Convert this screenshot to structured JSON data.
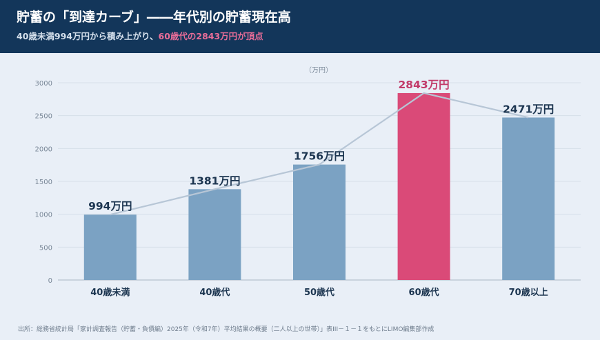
{
  "header": {
    "title": "貯蓄の「到達カーブ」――年代別の貯蓄現在高",
    "subtitle_prefix": "40歳未満994万円から積み上がり、",
    "subtitle_highlight": "60歳代の2843万円が頂点"
  },
  "chart_data": {
    "type": "bar",
    "title": "貯蓄の「到達カーブ」――年代別の貯蓄現在高",
    "unit_label": "（万円）",
    "categories": [
      "40歳未満",
      "40歳代",
      "50歳代",
      "60歳代",
      "70歳以上"
    ],
    "values": [
      994,
      1381,
      1756,
      2843,
      2471
    ],
    "data_labels": [
      "994万円",
      "1381万円",
      "1756万円",
      "2843万円",
      "2471万円"
    ],
    "highlight_index": 3,
    "ylim": [
      0,
      3000
    ],
    "yticks": [
      0,
      500,
      1000,
      1500,
      2000,
      2500,
      3000
    ],
    "grid": true,
    "overlay_line": true,
    "colors": {
      "bar": "#7ba2c3",
      "highlight": "#da4a78",
      "label": "#1c3550",
      "highlight_label": "#c23a69",
      "line": "#b7c6d6",
      "grid": "#d6dfe9",
      "tick": "#7a8898"
    }
  },
  "footer": {
    "source": "出所：総務省統計局「家計調査報告（貯蓄・負債編）2025年（令和7年）平均結果の概要（二人以上の世帯）」表III－１－１をもとにLIMO編集部作成"
  }
}
